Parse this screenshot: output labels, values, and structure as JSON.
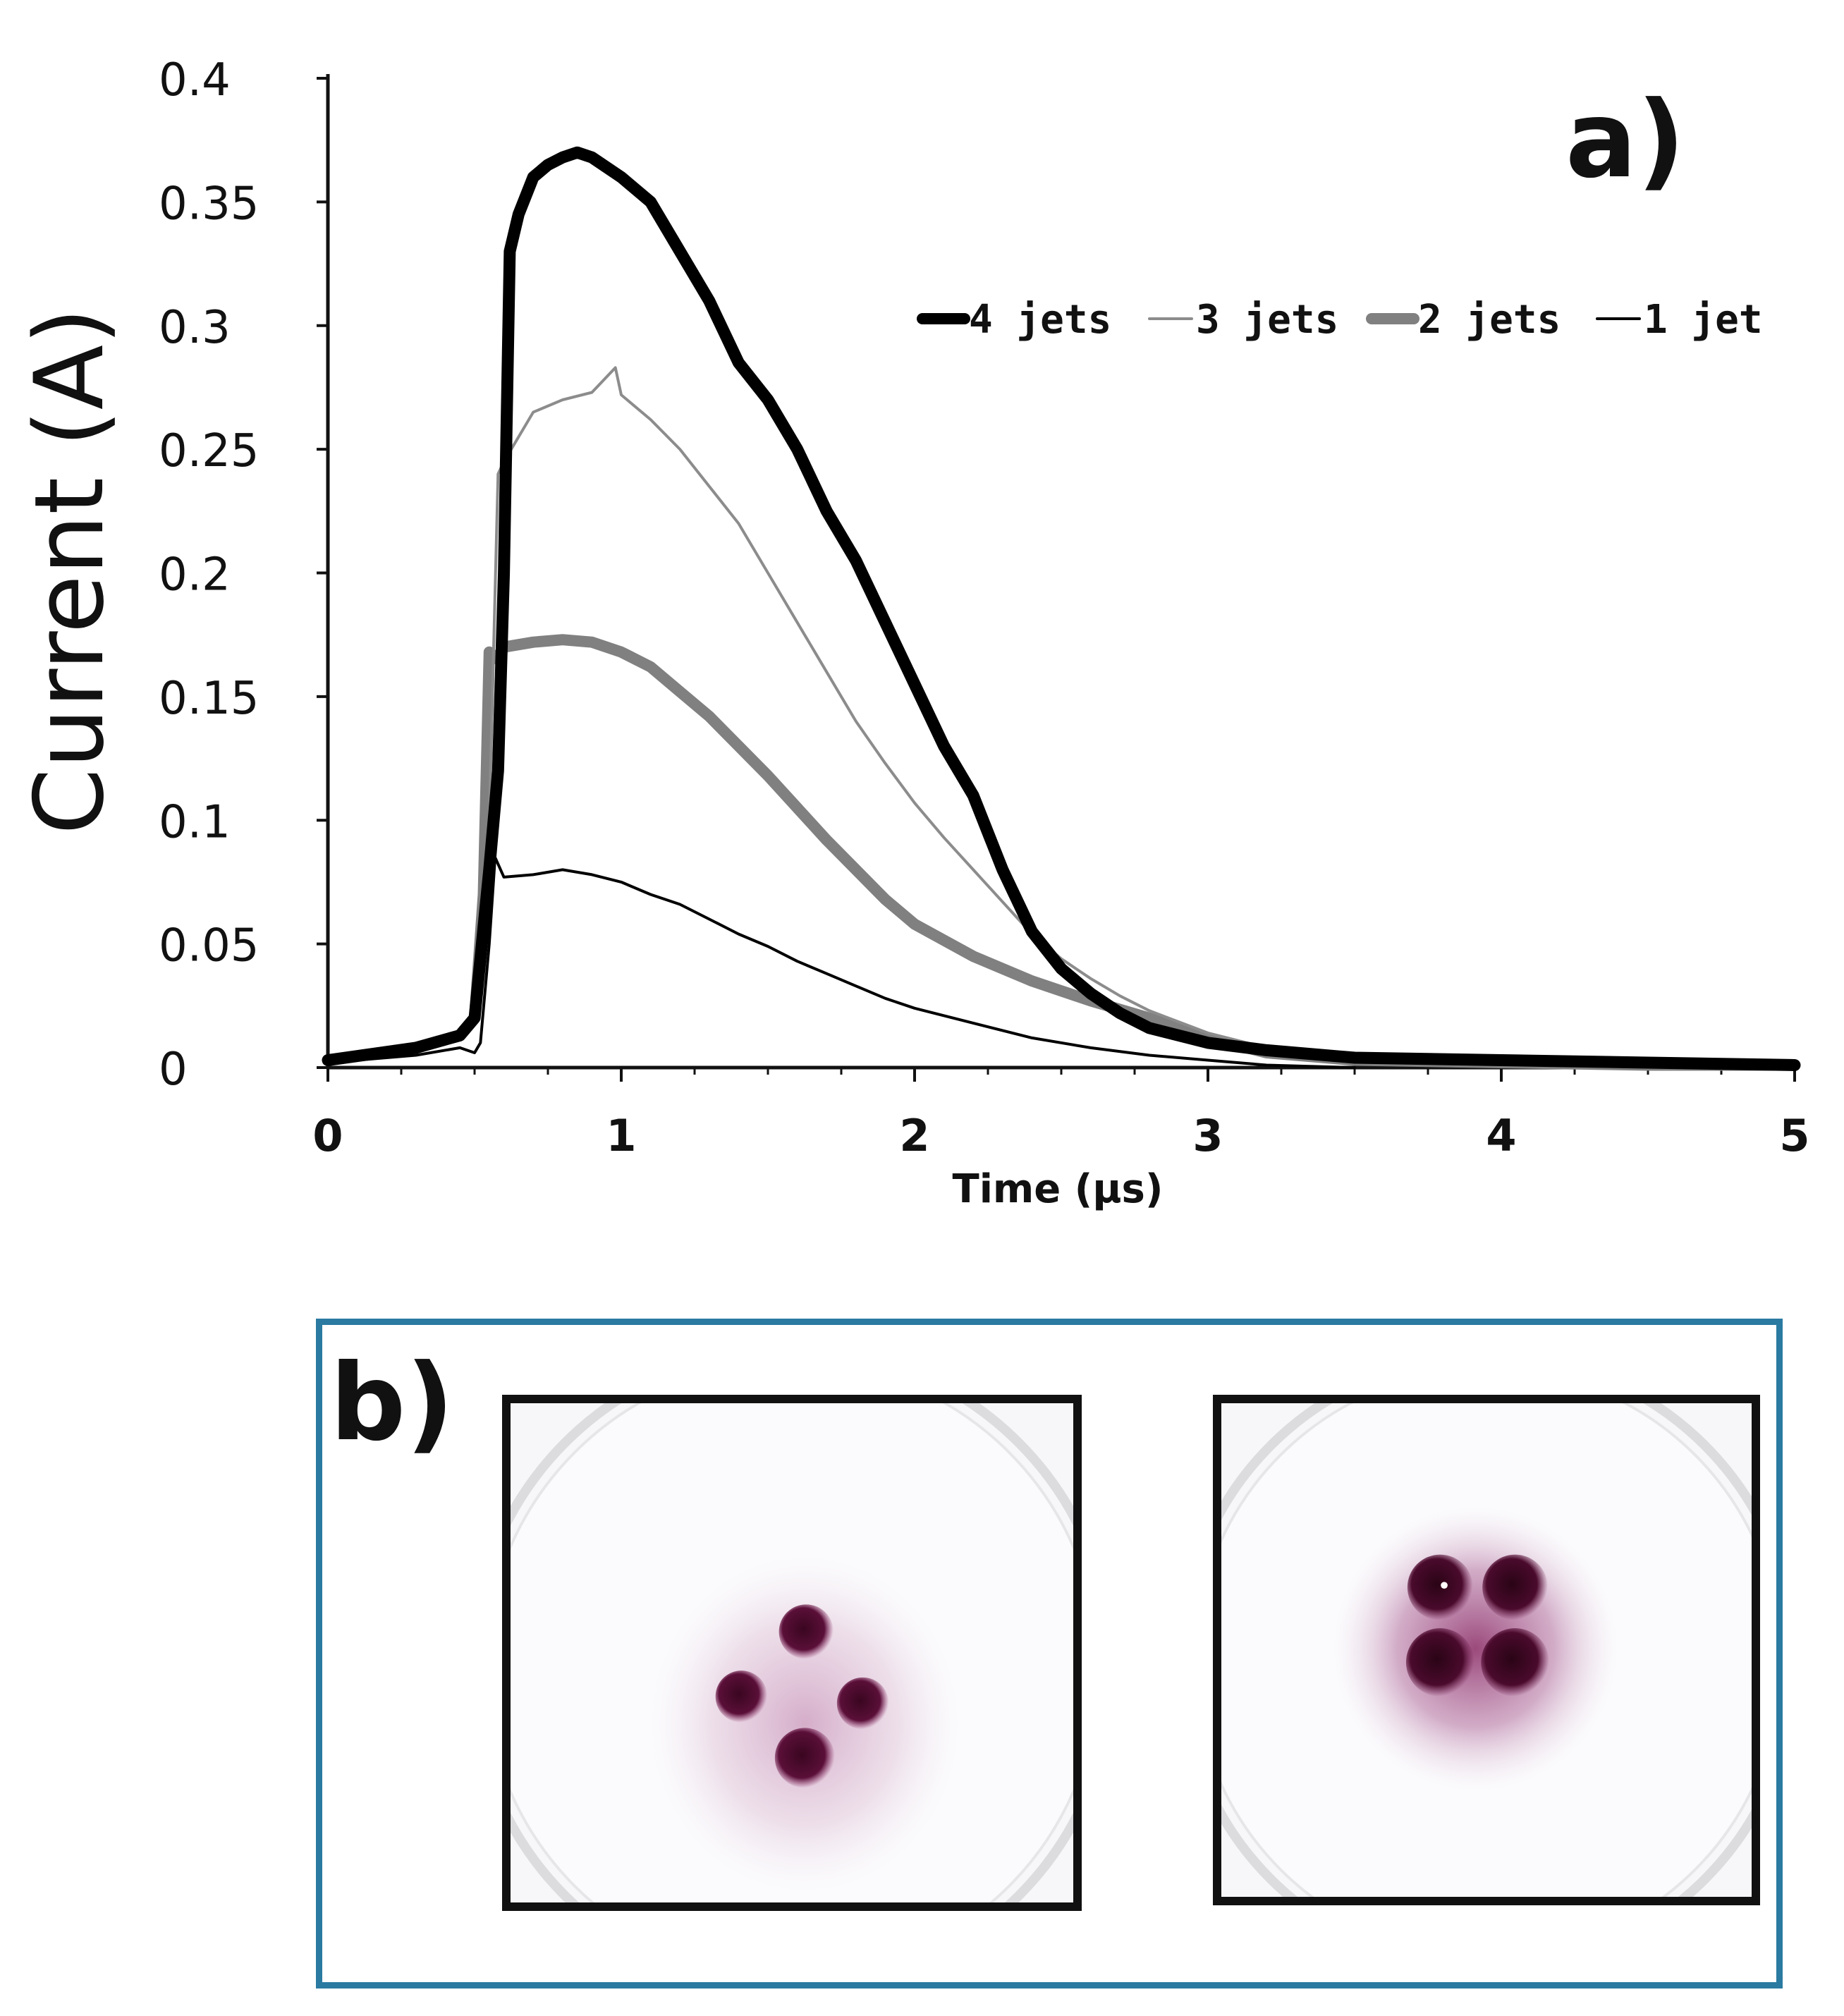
{
  "panel_a_label": "a)",
  "panel_b_label": "b)",
  "chart_data": {
    "type": "line",
    "title": "",
    "xlabel": "Time (μs)",
    "ylabel": "Current (A)",
    "xlim": [
      0,
      5
    ],
    "ylim": [
      0,
      0.4
    ],
    "x_ticks": [
      "0",
      "1",
      "2",
      "3",
      "4",
      "5"
    ],
    "y_ticks": [
      "0",
      "0.05",
      "0.1",
      "0.15",
      "0.2",
      "0.25",
      "0.3",
      "0.35",
      "0.4"
    ],
    "legend_position": "top-right",
    "series": [
      {
        "name": "4 jets",
        "color": "#000000",
        "style": "thick",
        "x": [
          0,
          0.3,
          0.45,
          0.5,
          0.55,
          0.58,
          0.6,
          0.62,
          0.65,
          0.7,
          0.75,
          0.8,
          0.85,
          0.9,
          1.0,
          1.1,
          1.2,
          1.3,
          1.4,
          1.5,
          1.6,
          1.7,
          1.8,
          1.9,
          2.0,
          2.1,
          2.2,
          2.3,
          2.4,
          2.5,
          2.6,
          2.7,
          2.8,
          3.0,
          3.2,
          3.5,
          4.0,
          4.5,
          5.0
        ],
        "y": [
          0.003,
          0.008,
          0.013,
          0.02,
          0.08,
          0.12,
          0.2,
          0.33,
          0.345,
          0.36,
          0.365,
          0.368,
          0.37,
          0.368,
          0.36,
          0.35,
          0.33,
          0.31,
          0.285,
          0.27,
          0.25,
          0.225,
          0.205,
          0.18,
          0.155,
          0.13,
          0.11,
          0.08,
          0.055,
          0.04,
          0.03,
          0.022,
          0.016,
          0.01,
          0.007,
          0.004,
          0.003,
          0.002,
          0.001
        ]
      },
      {
        "name": "3 jets",
        "color": "#8c8c8c",
        "style": "thin",
        "x": [
          0,
          0.3,
          0.45,
          0.5,
          0.55,
          0.58,
          0.6,
          0.65,
          0.7,
          0.8,
          0.9,
          0.98,
          1.0,
          1.1,
          1.2,
          1.3,
          1.4,
          1.5,
          1.6,
          1.7,
          1.8,
          1.9,
          2.0,
          2.1,
          2.2,
          2.3,
          2.4,
          2.5,
          2.6,
          2.7,
          2.8,
          3.0,
          3.2,
          3.5,
          4.0,
          4.5,
          5.0
        ],
        "y": [
          0.002,
          0.008,
          0.012,
          0.02,
          0.1,
          0.24,
          0.245,
          0.255,
          0.265,
          0.27,
          0.273,
          0.283,
          0.272,
          0.262,
          0.25,
          0.235,
          0.22,
          0.2,
          0.18,
          0.16,
          0.14,
          0.123,
          0.107,
          0.093,
          0.08,
          0.067,
          0.054,
          0.044,
          0.036,
          0.029,
          0.023,
          0.014,
          0.008,
          0.004,
          0.002,
          0.001,
          0.001
        ]
      },
      {
        "name": "2 jets",
        "color": "#808080",
        "style": "thick",
        "x": [
          0,
          0.3,
          0.45,
          0.5,
          0.53,
          0.55,
          0.58,
          0.6,
          0.7,
          0.8,
          0.9,
          1.0,
          1.1,
          1.2,
          1.3,
          1.4,
          1.5,
          1.6,
          1.7,
          1.8,
          1.9,
          2.0,
          2.2,
          2.4,
          2.6,
          2.8,
          3.0,
          3.2,
          3.5,
          4.0,
          4.5,
          5.0
        ],
        "y": [
          0.003,
          0.008,
          0.013,
          0.02,
          0.07,
          0.168,
          0.165,
          0.17,
          0.172,
          0.173,
          0.172,
          0.168,
          0.162,
          0.152,
          0.142,
          0.13,
          0.118,
          0.105,
          0.092,
          0.08,
          0.068,
          0.058,
          0.045,
          0.035,
          0.027,
          0.02,
          0.012,
          0.006,
          0.003,
          0.002,
          0.001,
          0.001
        ]
      },
      {
        "name": "1 jet",
        "color": "#000000",
        "style": "thin",
        "x": [
          0,
          0.3,
          0.45,
          0.5,
          0.52,
          0.55,
          0.57,
          0.6,
          0.7,
          0.8,
          0.9,
          1.0,
          1.1,
          1.2,
          1.3,
          1.4,
          1.5,
          1.6,
          1.7,
          1.8,
          1.9,
          2.0,
          2.2,
          2.4,
          2.6,
          2.8,
          3.0,
          3.2,
          3.5
        ],
        "y": [
          0.002,
          0.005,
          0.008,
          0.006,
          0.01,
          0.05,
          0.085,
          0.077,
          0.078,
          0.08,
          0.078,
          0.075,
          0.07,
          0.066,
          0.06,
          0.054,
          0.049,
          0.043,
          0.038,
          0.033,
          0.028,
          0.024,
          0.018,
          0.012,
          0.008,
          0.005,
          0.003,
          0.001,
          0
        ]
      }
    ]
  },
  "panel_b": {
    "images": [
      {
        "name": "dish-diamond-spots",
        "spot_color": "#5a0f38",
        "halo_color": "#b66ea0"
      },
      {
        "name": "dish-square-spots",
        "spot_color": "#4a0a2c",
        "halo_color": "#a04c86"
      }
    ]
  }
}
